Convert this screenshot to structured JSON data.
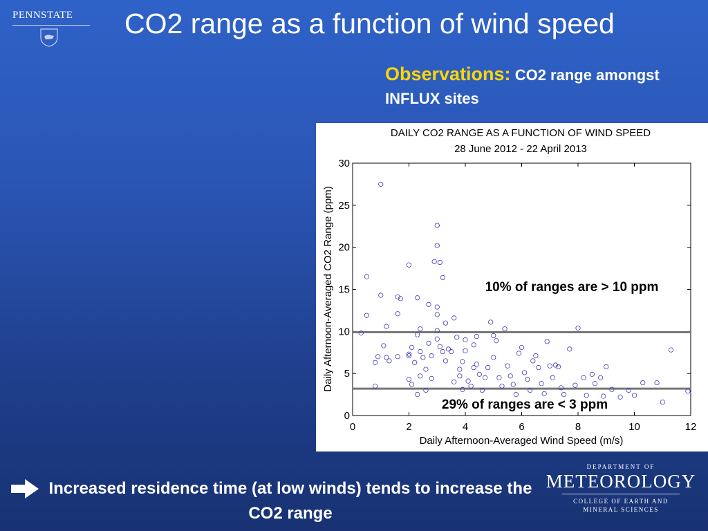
{
  "header": {
    "logo_text": "PENNSTATE",
    "title": "CO2 range as a function of wind speed"
  },
  "observations": {
    "label": "Observations:",
    "text": "CO2 range amongst INFLUX sites"
  },
  "chart_data": {
    "type": "scatter",
    "title": "DAILY CO2 RANGE AS A FUNCTION OF WIND SPEED",
    "subtitle": "28 June 2012 - 22 April 2013",
    "xlabel": "Daily Afternoon-Averaged Wind Speed (m/s)",
    "ylabel": "Daily Afternoon-Averaged CO2 Range (ppm)",
    "xlim": [
      0,
      12
    ],
    "ylim": [
      0,
      30
    ],
    "xticks": [
      0,
      2,
      4,
      6,
      8,
      10,
      12
    ],
    "yticks": [
      0,
      5,
      10,
      15,
      20,
      25,
      30
    ],
    "grid": false,
    "marker_color": "#3b3bb5",
    "hlines": [
      {
        "y": 9.9,
        "annotation": "10% of ranges are > 10 ppm"
      },
      {
        "y": 3.2,
        "annotation": "29% of ranges are < 3 ppm"
      }
    ],
    "points": [
      [
        1.0,
        27.5
      ],
      [
        0.5,
        16.5
      ],
      [
        1.0,
        14.3
      ],
      [
        0.5,
        11.9
      ],
      [
        0.3,
        9.8
      ],
      [
        0.9,
        7.0
      ],
      [
        0.8,
        6.3
      ],
      [
        0.8,
        3.5
      ],
      [
        1.2,
        10.6
      ],
      [
        1.2,
        6.9
      ],
      [
        1.3,
        6.5
      ],
      [
        1.1,
        8.3
      ],
      [
        1.6,
        14.1
      ],
      [
        1.7,
        13.9
      ],
      [
        1.6,
        12.1
      ],
      [
        1.6,
        7.0
      ],
      [
        2.0,
        17.9
      ],
      [
        2.3,
        14.0
      ],
      [
        2.0,
        7.3
      ],
      [
        2.0,
        7.1
      ],
      [
        2.1,
        8.1
      ],
      [
        2.2,
        6.3
      ],
      [
        2.0,
        4.3
      ],
      [
        2.1,
        3.7
      ],
      [
        2.3,
        9.6
      ],
      [
        2.4,
        10.3
      ],
      [
        2.4,
        7.6
      ],
      [
        2.5,
        6.9
      ],
      [
        2.4,
        4.7
      ],
      [
        2.6,
        3.0
      ],
      [
        2.3,
        2.5
      ],
      [
        2.6,
        5.5
      ],
      [
        2.7,
        13.2
      ],
      [
        2.7,
        8.6
      ],
      [
        2.8,
        7.1
      ],
      [
        2.8,
        4.4
      ],
      [
        2.9,
        18.3
      ],
      [
        3.0,
        22.6
      ],
      [
        3.0,
        20.2
      ],
      [
        3.1,
        18.2
      ],
      [
        3.2,
        16.4
      ],
      [
        3.0,
        12.9
      ],
      [
        3.0,
        12.0
      ],
      [
        3.0,
        10.1
      ],
      [
        3.0,
        9.1
      ],
      [
        3.1,
        8.2
      ],
      [
        3.2,
        7.6
      ],
      [
        3.3,
        11.0
      ],
      [
        3.3,
        6.5
      ],
      [
        3.4,
        7.9
      ],
      [
        3.5,
        7.6
      ],
      [
        3.6,
        11.6
      ],
      [
        3.6,
        4.0
      ],
      [
        3.7,
        9.3
      ],
      [
        3.8,
        5.5
      ],
      [
        3.8,
        4.7
      ],
      [
        3.9,
        6.4
      ],
      [
        3.9,
        3.1
      ],
      [
        4.0,
        9.0
      ],
      [
        4.0,
        7.7
      ],
      [
        4.1,
        4.1
      ],
      [
        4.2,
        3.5
      ],
      [
        4.3,
        5.7
      ],
      [
        4.3,
        8.4
      ],
      [
        4.4,
        9.4
      ],
      [
        4.4,
        6.1
      ],
      [
        4.5,
        4.9
      ],
      [
        4.6,
        3.0
      ],
      [
        4.7,
        4.5
      ],
      [
        4.8,
        5.7
      ],
      [
        4.9,
        11.1
      ],
      [
        5.0,
        9.5
      ],
      [
        5.0,
        6.9
      ],
      [
        5.1,
        8.9
      ],
      [
        5.2,
        4.5
      ],
      [
        5.3,
        3.5
      ],
      [
        5.4,
        10.3
      ],
      [
        5.5,
        5.9
      ],
      [
        5.6,
        4.7
      ],
      [
        5.7,
        3.7
      ],
      [
        5.8,
        2.5
      ],
      [
        5.9,
        7.4
      ],
      [
        6.0,
        8.1
      ],
      [
        6.1,
        5.1
      ],
      [
        6.2,
        4.3
      ],
      [
        6.3,
        3.0
      ],
      [
        6.4,
        6.5
      ],
      [
        6.5,
        7.1
      ],
      [
        6.6,
        5.7
      ],
      [
        6.7,
        3.8
      ],
      [
        6.8,
        2.6
      ],
      [
        6.9,
        8.8
      ],
      [
        7.0,
        5.9
      ],
      [
        7.1,
        4.5
      ],
      [
        7.2,
        6.0
      ],
      [
        7.3,
        5.8
      ],
      [
        7.4,
        3.3
      ],
      [
        7.5,
        2.5
      ],
      [
        7.7,
        7.9
      ],
      [
        7.9,
        3.6
      ],
      [
        8.0,
        10.4
      ],
      [
        8.2,
        4.5
      ],
      [
        8.3,
        2.4
      ],
      [
        8.5,
        4.9
      ],
      [
        8.6,
        3.8
      ],
      [
        8.8,
        4.5
      ],
      [
        8.9,
        2.3
      ],
      [
        9.0,
        5.8
      ],
      [
        9.2,
        3.1
      ],
      [
        9.5,
        2.2
      ],
      [
        9.8,
        3.0
      ],
      [
        10.0,
        2.4
      ],
      [
        10.3,
        3.9
      ],
      [
        10.8,
        3.9
      ],
      [
        11.0,
        1.6
      ],
      [
        11.3,
        7.8
      ],
      [
        11.9,
        2.9
      ]
    ]
  },
  "footer": {
    "text": "Increased residence time (at low winds) tends to increase the CO2 range",
    "logo_dept": "DEPARTMENT OF",
    "logo_name": "METEOROLOGY",
    "logo_college_1": "COLLEGE OF EARTH AND",
    "logo_college_2": "MINERAL SCIENCES"
  }
}
